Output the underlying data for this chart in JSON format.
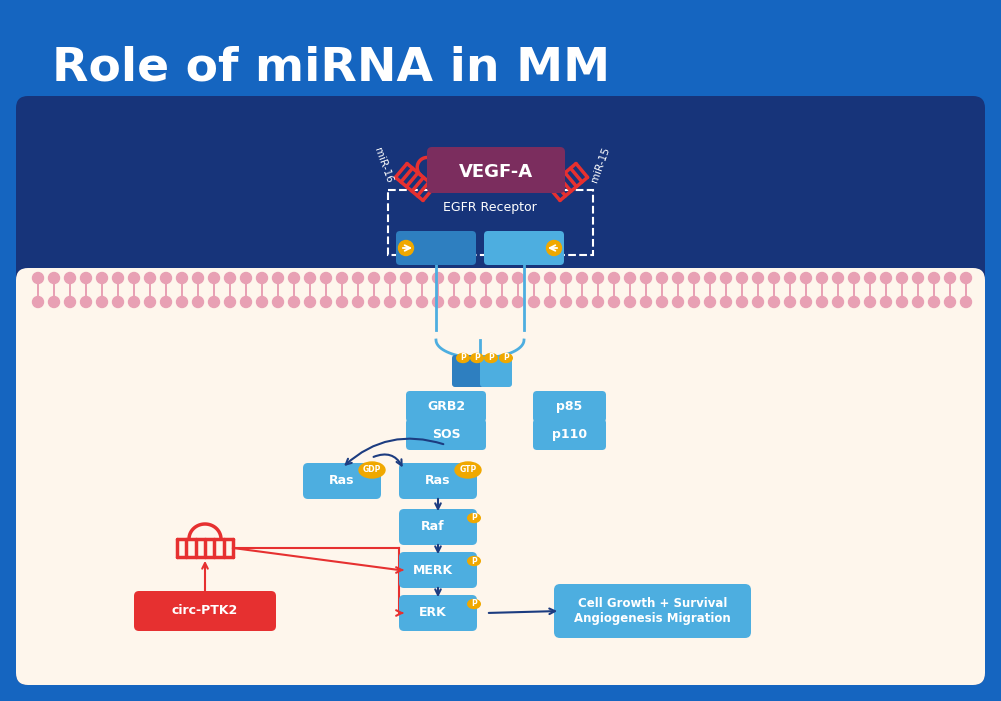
{
  "title": "Role of miRNA in MM",
  "bg_outer": "#1565C0",
  "bg_inner": "#17347a",
  "bg_cell": "#FEF6EC",
  "membrane_pink": "#e8a0b4",
  "blue_dark": "#2e7fc0",
  "blue_mid": "#4daee0",
  "blue_light": "#6ec6f0",
  "purple_vegf": "#7b2d5e",
  "red": "#e63030",
  "gold": "#f0a800",
  "white": "#ffffff",
  "arrow_dark_blue": "#1c3c80",
  "arrow_red": "#e63030",
  "mir16": "miR-16",
  "mir15": "miR-15",
  "vegf": "VEGF-A",
  "egfr": "EGFR Receptor",
  "grb2": "GRB2",
  "sos": "SOS",
  "p85": "p85",
  "p110": "p110",
  "ras": "Ras",
  "gdp": "GDP",
  "gtp": "GTP",
  "raf": "Raf",
  "merk": "MERK",
  "erk": "ERK",
  "outcome": "Cell Growth + Survival\nAngiogenesis Migration",
  "circ": "circ-PTK2"
}
